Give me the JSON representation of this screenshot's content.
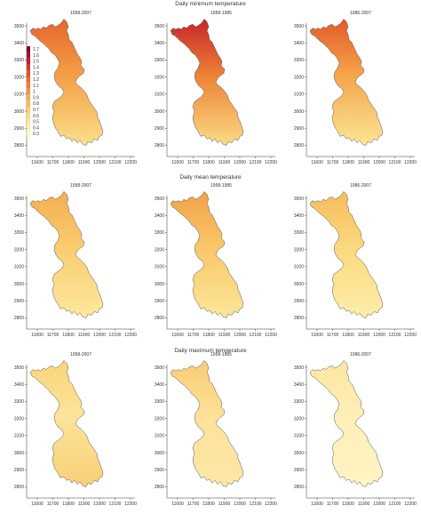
{
  "rows": [
    {
      "title": "Daily minimum temperature",
      "panels": [
        {
          "label": "1958-2007",
          "north": "#e8642b",
          "mid": "#f3a046",
          "south": "#fbe08a"
        },
        {
          "label": "1958-1985",
          "north": "#c8242b",
          "mid": "#ee8235",
          "south": "#fadc86"
        },
        {
          "label": "1986-2007",
          "north": "#e45a2a",
          "mid": "#f4a64b",
          "south": "#fce696"
        }
      ]
    },
    {
      "title": "Daily mean temperature",
      "panels": [
        {
          "label": "1958-2007",
          "north": "#f4ae4e",
          "mid": "#f9cd70",
          "south": "#fde9a0"
        },
        {
          "label": "1958-1985",
          "north": "#f2a046",
          "mid": "#f8c86a",
          "south": "#fde69a"
        },
        {
          "label": "1986-2007",
          "north": "#f6bc5c",
          "mid": "#fbd97e",
          "south": "#feeeab"
        }
      ]
    },
    {
      "title": "Daily maximum temperature",
      "panels": [
        {
          "label": "1958-2007",
          "north": "#fbd57a",
          "mid": "#fde49a",
          "south": "#f9d076"
        },
        {
          "label": "1958-1985",
          "north": "#f9cc72",
          "mid": "#fde29a",
          "south": "#fce7a6"
        },
        {
          "label": "1986-2007",
          "north": "#fde6a2",
          "mid": "#feefb8",
          "south": "#fff4c4"
        }
      ]
    }
  ],
  "x_ticks": [
    "11600",
    "11700",
    "11800",
    "11900",
    "12000",
    "12100",
    "12200"
  ],
  "y_ticks": [
    "3500",
    "3400",
    "3300",
    "3200",
    "3100",
    "3000",
    "2900",
    "2800"
  ],
  "legend": {
    "values": [
      "1.7",
      "1.6",
      "1.5",
      "1.4",
      "1.3",
      "1.2",
      "1.1",
      "1",
      "0.9",
      "0.8",
      "0.7",
      "0.6",
      "0.5",
      "0.4",
      "0.3"
    ],
    "colors": [
      "#7f0a23",
      "#a3122a",
      "#c31f2a",
      "#d7362a",
      "#e2502b",
      "#ea682e",
      "#ef7f35",
      "#f2953f",
      "#f5aa4c",
      "#f7bd5c",
      "#f9cd6e",
      "#fbdb82",
      "#fde697",
      "#fef0ae",
      "#fff7c6"
    ]
  }
}
